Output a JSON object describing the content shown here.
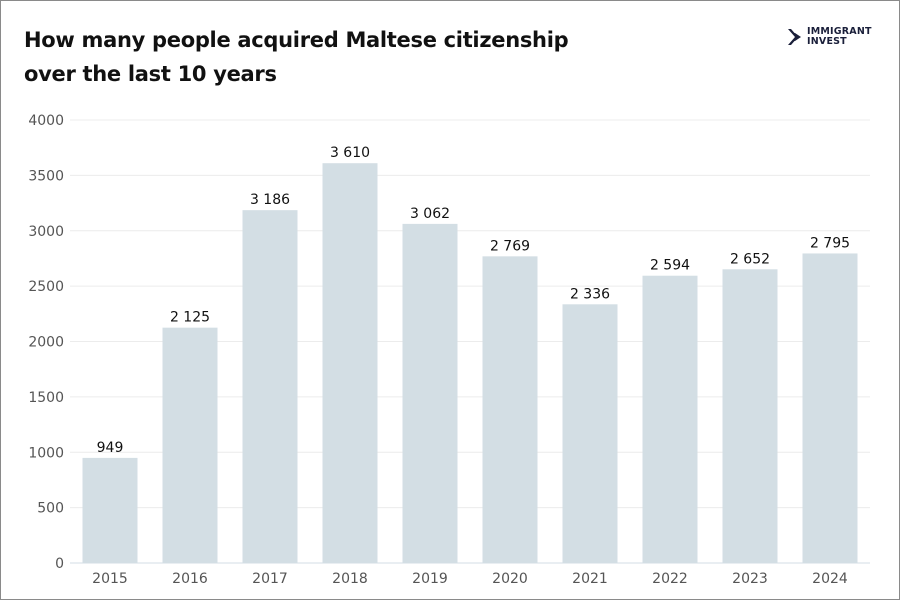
{
  "title_line1": "How many people acquired Maltese citizenship",
  "title_line2": "over the last 10 years",
  "logo": {
    "line1": "IMMIGRANT",
    "line2": "INVEST",
    "icon": "double-chevron-right-icon",
    "color": "#1a1f3a"
  },
  "chart_data": {
    "type": "bar",
    "title": "How many people acquired Maltese citizenship over the last 10 years",
    "categories": [
      "2015",
      "2016",
      "2017",
      "2018",
      "2019",
      "2020",
      "2021",
      "2022",
      "2023",
      "2024"
    ],
    "values": [
      949,
      2125,
      3186,
      3610,
      3062,
      2769,
      2336,
      2594,
      2652,
      2795
    ],
    "data_labels": [
      "949",
      "2 125",
      "3 186",
      "3 610",
      "3 062",
      "2 769",
      "2 336",
      "2 594",
      "2 652",
      "2 795"
    ],
    "ylim": [
      0,
      4000
    ],
    "yticks": [
      0,
      500,
      1000,
      1500,
      2000,
      2500,
      3000,
      3500,
      4000
    ],
    "grid": true,
    "xlabel": "",
    "ylabel": "",
    "bar_color": "#d3dee4"
  }
}
